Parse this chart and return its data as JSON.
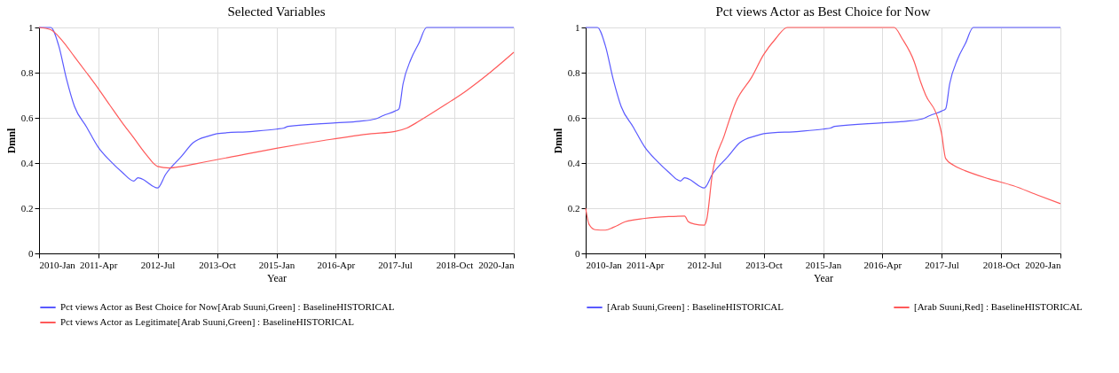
{
  "chart_data": [
    {
      "type": "line",
      "title": "Selected Variables",
      "xlabel": "Year",
      "ylabel": "Dmnl",
      "xlim": [
        "2010-01",
        "2020-01"
      ],
      "ylim": [
        0,
        1
      ],
      "xticks": [
        {
          "value": "2010-01",
          "label": "2010-Jan"
        },
        {
          "value": "2011-04",
          "label": "2011-Apr"
        },
        {
          "value": "2012-07",
          "label": "2012-Jul"
        },
        {
          "value": "2013-10",
          "label": "2013-Oct"
        },
        {
          "value": "2015-01",
          "label": "2015-Jan"
        },
        {
          "value": "2016-04",
          "label": "2016-Apr"
        },
        {
          "value": "2017-07",
          "label": "2017-Jul"
        },
        {
          "value": "2018-10",
          "label": "2018-Oct"
        },
        {
          "value": "2020-01",
          "label": "2020-Jan"
        }
      ],
      "yticks": [
        0,
        0.2,
        0.4,
        0.6,
        0.8,
        1
      ],
      "grid": true,
      "legend": "bottom",
      "series": [
        {
          "name": "Pct views Actor as Best Choice for Now[Arab Suuni,Green] : BaselineHISTORICAL",
          "color": "#5a5aff",
          "x": [
            "2010-01",
            "2010-04",
            "2010-06",
            "2010-08",
            "2010-10",
            "2011-01",
            "2011-04",
            "2011-07",
            "2011-10",
            "2012-01",
            "2012-02",
            "2012-03",
            "2012-07",
            "2012-09",
            "2013-01",
            "2013-04",
            "2013-08",
            "2013-10",
            "2014-07",
            "2015-01",
            "2015-03",
            "2015-04",
            "2016-04",
            "2016-10",
            "2017-02",
            "2017-04",
            "2017-07",
            "2017-08",
            "2017-09",
            "2017-11",
            "2018-01",
            "2018-03",
            "2020-01"
          ],
          "values": [
            1.0,
            1.0,
            0.92,
            0.77,
            0.65,
            0.56,
            0.47,
            0.41,
            0.36,
            0.32,
            0.335,
            0.33,
            0.29,
            0.35,
            0.43,
            0.49,
            0.52,
            0.53,
            0.54,
            0.55,
            0.555,
            0.562,
            0.578,
            0.585,
            0.595,
            0.61,
            0.63,
            0.64,
            0.75,
            0.86,
            0.93,
            1.0,
            1.0
          ]
        },
        {
          "name": "Pct views Actor as Legitimate[Arab Suuni,Green] : BaselineHISTORICAL",
          "color": "#ff5a5a",
          "x": [
            "2010-01",
            "2010-04",
            "2010-07",
            "2010-10",
            "2011-01",
            "2011-04",
            "2011-07",
            "2011-10",
            "2012-01",
            "2012-04",
            "2012-07",
            "2012-10",
            "2013-01",
            "2013-07",
            "2014-01",
            "2015-01",
            "2016-01",
            "2017-01",
            "2017-07",
            "2017-10",
            "2018-01",
            "2018-07",
            "2019-01",
            "2019-07",
            "2020-01"
          ],
          "values": [
            1.0,
            0.99,
            0.94,
            0.87,
            0.8,
            0.73,
            0.655,
            0.58,
            0.51,
            0.44,
            0.385,
            0.378,
            0.385,
            0.405,
            0.425,
            0.465,
            0.5,
            0.53,
            0.54,
            0.555,
            0.585,
            0.65,
            0.72,
            0.8,
            0.89
          ]
        }
      ]
    },
    {
      "type": "line",
      "title": "Pct views Actor as Best Choice for Now",
      "xlabel": "Year",
      "ylabel": "Dmnl",
      "xlim": [
        "2010-01",
        "2020-01"
      ],
      "ylim": [
        0,
        1
      ],
      "xticks": [
        {
          "value": "2010-01",
          "label": "2010-Jan"
        },
        {
          "value": "2011-04",
          "label": "2011-Apr"
        },
        {
          "value": "2012-07",
          "label": "2012-Jul"
        },
        {
          "value": "2013-10",
          "label": "2013-Oct"
        },
        {
          "value": "2015-01",
          "label": "2015-Jan"
        },
        {
          "value": "2016-04",
          "label": "2016-Apr"
        },
        {
          "value": "2017-07",
          "label": "2017-Jul"
        },
        {
          "value": "2018-10",
          "label": "2018-Oct"
        },
        {
          "value": "2020-01",
          "label": "2020-Jan"
        }
      ],
      "yticks": [
        0,
        0.2,
        0.4,
        0.6,
        0.8,
        1
      ],
      "grid": true,
      "legend": "bottom",
      "series": [
        {
          "name": "[Arab Suuni,Green] : BaselineHISTORICAL",
          "color": "#5a5aff",
          "x": [
            "2010-01",
            "2010-04",
            "2010-06",
            "2010-08",
            "2010-10",
            "2011-01",
            "2011-04",
            "2011-07",
            "2011-10",
            "2012-01",
            "2012-02",
            "2012-03",
            "2012-07",
            "2012-09",
            "2013-01",
            "2013-04",
            "2013-08",
            "2013-10",
            "2014-07",
            "2015-01",
            "2015-03",
            "2015-04",
            "2016-04",
            "2016-10",
            "2017-02",
            "2017-04",
            "2017-07",
            "2017-08",
            "2017-09",
            "2017-11",
            "2018-01",
            "2018-03",
            "2020-01"
          ],
          "values": [
            1.0,
            1.0,
            0.92,
            0.77,
            0.65,
            0.56,
            0.47,
            0.41,
            0.36,
            0.32,
            0.335,
            0.33,
            0.29,
            0.35,
            0.43,
            0.49,
            0.52,
            0.53,
            0.54,
            0.55,
            0.555,
            0.562,
            0.578,
            0.585,
            0.595,
            0.61,
            0.63,
            0.64,
            0.75,
            0.86,
            0.93,
            1.0,
            1.0
          ]
        },
        {
          "name": "[Arab Suuni,Red] : BaselineHISTORICAL",
          "color": "#ff5a5a",
          "x": [
            "2010-01",
            "2010-01-26",
            "2010-03-15",
            "2010-06",
            "2010-08",
            "2010-11",
            "2011-04",
            "2011-10",
            "2012-02",
            "2012-03",
            "2012-04-15",
            "2012-07",
            "2012-07-20",
            "2012-09",
            "2012-12",
            "2013-03",
            "2013-07",
            "2013-10",
            "2014-01",
            "2014-04",
            "2016-07",
            "2016-09",
            "2016-12",
            "2017-01-20",
            "2017-03",
            "2017-06",
            "2017-07",
            "2017-08",
            "2017-10",
            "2018-01",
            "2018-07",
            "2019-01",
            "2019-07",
            "2020-01"
          ],
          "values": [
            0.2,
            0.13,
            0.105,
            0.103,
            0.115,
            0.14,
            0.155,
            0.163,
            0.165,
            0.14,
            0.13,
            0.125,
            0.15,
            0.35,
            0.52,
            0.67,
            0.78,
            0.88,
            0.95,
            1.0,
            1.0,
            0.95,
            0.85,
            0.76,
            0.7,
            0.6,
            0.53,
            0.42,
            0.39,
            0.365,
            0.33,
            0.3,
            0.26,
            0.22
          ]
        }
      ]
    }
  ]
}
